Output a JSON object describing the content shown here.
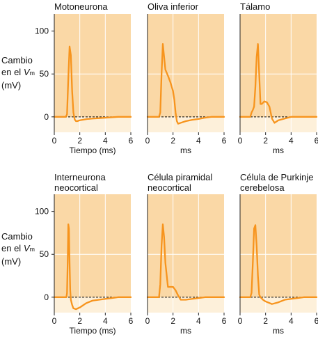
{
  "y_axis_label": {
    "line1": "Cambio",
    "line2": "en el",
    "vm_v": "V",
    "vm_sub": "m",
    "line3": "(mV)"
  },
  "x_tick_labels": [
    "0",
    "2",
    "4",
    "6"
  ],
  "y_tick_labels": [
    "0",
    "50",
    "100"
  ],
  "colors": {
    "top_band": "#fad8a6",
    "bottom_band": "#fdf0da",
    "trace": "#f7941d",
    "grid": "#ffffff",
    "baseline": "#000000"
  },
  "chart_data": [
    {
      "type": "line",
      "title": [
        "Motoneurona"
      ],
      "xlabel": "Tiempo (ms)",
      "xlim": [
        0,
        6
      ],
      "ylim": [
        -18,
        120
      ],
      "baseline": 0,
      "x": [
        0,
        0.9,
        1.0,
        1.1,
        1.2,
        1.3,
        1.4,
        1.5,
        1.6,
        1.7,
        1.8,
        2.0,
        2.2,
        2.6,
        3.0,
        3.5,
        4.0,
        4.5,
        5.0,
        5.5,
        6.0
      ],
      "y": [
        0,
        0,
        3,
        45,
        82,
        72,
        30,
        5,
        -3,
        -5,
        -5,
        -4,
        -3.5,
        -2.5,
        -2,
        -1.5,
        -1,
        -0.5,
        0,
        0,
        0
      ]
    },
    {
      "type": "line",
      "title": [
        "Oliva inferior"
      ],
      "xlabel": "ms",
      "xlim": [
        0,
        6
      ],
      "ylim": [
        -18,
        120
      ],
      "baseline": 0,
      "x": [
        0,
        0.9,
        1.0,
        1.1,
        1.2,
        1.3,
        1.4,
        1.6,
        1.8,
        2.0,
        2.1,
        2.2,
        2.3,
        2.4,
        2.6,
        3.0,
        3.5,
        4.0,
        4.5,
        5.0,
        6.0
      ],
      "y": [
        0,
        0,
        5,
        50,
        85,
        70,
        55,
        48,
        40,
        30,
        20,
        5,
        -5,
        -8,
        -7,
        -5,
        -3.5,
        -2.5,
        -1,
        0,
        0
      ]
    },
    {
      "type": "line",
      "title": [
        "Tálamo"
      ],
      "xlabel": "ms",
      "xlim": [
        0,
        6
      ],
      "ylim": [
        -18,
        120
      ],
      "baseline": 0,
      "x": [
        0,
        0.8,
        0.9,
        1.0,
        1.1,
        1.2,
        1.3,
        1.4,
        1.5,
        1.6,
        1.7,
        1.9,
        2.1,
        2.3,
        2.5,
        2.7,
        3.0,
        3.5,
        4.0,
        5.0,
        6.0
      ],
      "y": [
        0,
        0,
        5,
        8,
        12,
        35,
        70,
        85,
        50,
        15,
        15,
        18,
        17,
        12,
        -2,
        -7,
        -4,
        -2,
        0,
        0,
        0
      ]
    },
    {
      "type": "line",
      "title": [
        "Interneurona",
        "neocortical"
      ],
      "xlabel": "Tiempo (ms)",
      "xlim": [
        0,
        6
      ],
      "ylim": [
        -18,
        120
      ],
      "baseline": 0,
      "x": [
        0,
        0.95,
        1.0,
        1.05,
        1.1,
        1.15,
        1.2,
        1.25,
        1.3,
        1.4,
        1.5,
        1.7,
        2.0,
        2.5,
        3.0,
        3.5,
        4.0,
        4.5,
        5.0,
        6.0
      ],
      "y": [
        0,
        0,
        5,
        40,
        85,
        80,
        40,
        8,
        -3,
        -9,
        -13,
        -14,
        -12,
        -7,
        -4,
        -3,
        -2,
        -1,
        0,
        0
      ]
    },
    {
      "type": "line",
      "title": [
        "Célula piramidal",
        "neocortical"
      ],
      "xlabel": "ms",
      "xlim": [
        0,
        6
      ],
      "ylim": [
        -18,
        120
      ],
      "baseline": 0,
      "x": [
        0,
        0.9,
        1.0,
        1.1,
        1.2,
        1.3,
        1.4,
        1.6,
        1.8,
        2.0,
        2.2,
        2.4,
        2.6,
        3.0,
        3.5,
        4.0,
        4.5,
        5.0,
        6.0
      ],
      "y": [
        0,
        0,
        15,
        60,
        85,
        70,
        40,
        12,
        12,
        12,
        8,
        2,
        -3,
        -3,
        -2,
        -1,
        0,
        0,
        0
      ]
    },
    {
      "type": "line",
      "title": [
        "Célula de Purkinje",
        "cerebelosa"
      ],
      "xlabel": "ms",
      "xlim": [
        0,
        6
      ],
      "ylim": [
        -18,
        120
      ],
      "baseline": 0,
      "x": [
        0,
        0.8,
        0.9,
        1.0,
        1.1,
        1.2,
        1.3,
        1.4,
        1.5,
        1.6,
        1.8,
        2.0,
        2.5,
        3.0,
        3.5,
        4.0,
        4.5,
        5.0,
        6.0
      ],
      "y": [
        0,
        0,
        5,
        40,
        80,
        84,
        60,
        25,
        3,
        0,
        -3,
        -5,
        -8,
        -6,
        -3,
        -2,
        -1,
        0,
        0
      ]
    }
  ]
}
